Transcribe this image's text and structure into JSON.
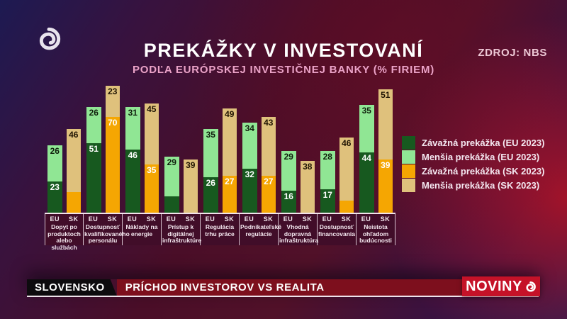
{
  "header": {
    "title": "PREKÁŽKY V INVESTOVANÍ",
    "subtitle": "PODĽA EURÓPSKEJ INVESTIČNEJ BANKY (% FIRIEM)",
    "source": "ZDROJ: NBS"
  },
  "colors": {
    "eu_severe": "#17591f",
    "eu_minor": "#90e694",
    "sk_severe": "#f5a602",
    "sk_minor": "#dfc17c",
    "label_on_eu_severe": "#ffffff",
    "label_on_eu_minor": "#10200d",
    "label_on_sk_severe": "#ffffff",
    "label_on_sk_minor": "#201503",
    "ticker_red": "#7d0f1d",
    "brand_red": "#c51228"
  },
  "legend": [
    {
      "key": "eu_severe",
      "label": "Závažná prekážka (EU 2023)"
    },
    {
      "key": "eu_minor",
      "label": "Menšia prekážka (EU 2023)"
    },
    {
      "key": "sk_severe",
      "label": "Závažná prekážka (SK 2023)"
    },
    {
      "key": "sk_minor",
      "label": "Menšia prekážka (SK 2023)"
    }
  ],
  "chart_data": {
    "type": "bar",
    "subtype": "grouped-stacked",
    "title": "PREKÁŽKY V INVESTOVANÍ",
    "subtitle": "PODĽA EURÓPSKEJ INVESTIČNEJ BANKY (% FIRIEM)",
    "unit": "% firiem",
    "value_axis_range": [
      0,
      100
    ],
    "grid": false,
    "legend_position": "right",
    "column_headers": [
      "EU",
      "SK"
    ],
    "stack_order_bottom_to_top": [
      "Závažná prekážka",
      "Menšia prekážka"
    ],
    "groups": [
      {
        "category": "Dopyt po produktoch alebo službách",
        "bars": [
          {
            "name": "EU",
            "segments": [
              {
                "key": "eu_severe",
                "value": 23,
                "show_label": true
              },
              {
                "key": "eu_minor",
                "value": 26,
                "show_label": true
              }
            ]
          },
          {
            "name": "SK",
            "segments": [
              {
                "key": "sk_severe",
                "value": 15,
                "show_label": false
              },
              {
                "key": "sk_minor",
                "value": 46,
                "show_label": true
              }
            ]
          }
        ]
      },
      {
        "category": "Dostupnosť kvalifikovaného personálu",
        "bars": [
          {
            "name": "EU",
            "segments": [
              {
                "key": "eu_severe",
                "value": 51,
                "show_label": true
              },
              {
                "key": "eu_minor",
                "value": 26,
                "show_label": true
              }
            ]
          },
          {
            "name": "SK",
            "segments": [
              {
                "key": "sk_severe",
                "value": 70,
                "show_label": true
              },
              {
                "key": "sk_minor",
                "value": 23,
                "show_label": true
              }
            ]
          }
        ]
      },
      {
        "category": "Náklady na energie",
        "bars": [
          {
            "name": "EU",
            "segments": [
              {
                "key": "eu_severe",
                "value": 46,
                "show_label": true
              },
              {
                "key": "eu_minor",
                "value": 31,
                "show_label": true
              }
            ]
          },
          {
            "name": "SK",
            "segments": [
              {
                "key": "sk_severe",
                "value": 35,
                "show_label": true
              },
              {
                "key": "sk_minor",
                "value": 45,
                "show_label": true
              }
            ]
          }
        ]
      },
      {
        "category": "Prístup k digitálnej infraštruktúre",
        "bars": [
          {
            "name": "EU",
            "segments": [
              {
                "key": "eu_severe",
                "value": 12,
                "show_label": false
              },
              {
                "key": "eu_minor",
                "value": 29,
                "show_label": true
              }
            ]
          },
          {
            "name": "SK",
            "segments": [
              {
                "key": "sk_severe",
                "value": 0,
                "show_label": false
              },
              {
                "key": "sk_minor",
                "value": 39,
                "show_label": true
              }
            ]
          }
        ]
      },
      {
        "category": "Regulácia trhu práce",
        "bars": [
          {
            "name": "EU",
            "segments": [
              {
                "key": "eu_severe",
                "value": 26,
                "show_label": true
              },
              {
                "key": "eu_minor",
                "value": 35,
                "show_label": true
              }
            ]
          },
          {
            "name": "SK",
            "segments": [
              {
                "key": "sk_severe",
                "value": 27,
                "show_label": true
              },
              {
                "key": "sk_minor",
                "value": 49,
                "show_label": true
              }
            ]
          }
        ]
      },
      {
        "category": "Podnikateľské regulácie",
        "bars": [
          {
            "name": "EU",
            "segments": [
              {
                "key": "eu_severe",
                "value": 32,
                "show_label": true
              },
              {
                "key": "eu_minor",
                "value": 34,
                "show_label": true
              }
            ]
          },
          {
            "name": "SK",
            "segments": [
              {
                "key": "sk_severe",
                "value": 27,
                "show_label": true
              },
              {
                "key": "sk_minor",
                "value": 43,
                "show_label": true
              }
            ]
          }
        ]
      },
      {
        "category": "Vhodná dopravná infraštruktúra",
        "bars": [
          {
            "name": "EU",
            "segments": [
              {
                "key": "eu_severe",
                "value": 16,
                "show_label": true
              },
              {
                "key": "eu_minor",
                "value": 29,
                "show_label": true
              }
            ]
          },
          {
            "name": "SK",
            "segments": [
              {
                "key": "sk_severe",
                "value": 0,
                "show_label": false
              },
              {
                "key": "sk_minor",
                "value": 38,
                "show_label": true
              }
            ]
          }
        ]
      },
      {
        "category": "Dostupnosť financovania",
        "bars": [
          {
            "name": "EU",
            "segments": [
              {
                "key": "eu_severe",
                "value": 17,
                "show_label": true
              },
              {
                "key": "eu_minor",
                "value": 28,
                "show_label": true
              }
            ]
          },
          {
            "name": "SK",
            "segments": [
              {
                "key": "sk_severe",
                "value": 9,
                "show_label": false
              },
              {
                "key": "sk_minor",
                "value": 46,
                "show_label": true
              }
            ]
          }
        ]
      },
      {
        "category": "Neistota ohľadom budúcnosti",
        "bars": [
          {
            "name": "EU",
            "segments": [
              {
                "key": "eu_severe",
                "value": 44,
                "show_label": true
              },
              {
                "key": "eu_minor",
                "value": 35,
                "show_label": true
              }
            ]
          },
          {
            "name": "SK",
            "segments": [
              {
                "key": "sk_severe",
                "value": 39,
                "show_label": true
              },
              {
                "key": "sk_minor",
                "value": 51,
                "show_label": true
              }
            ]
          }
        ]
      }
    ]
  },
  "ticker": {
    "tag": "SLOVENSKO",
    "headline": "PRÍCHOD INVESTOROV VS REALITA",
    "brand": "NOVINY"
  }
}
